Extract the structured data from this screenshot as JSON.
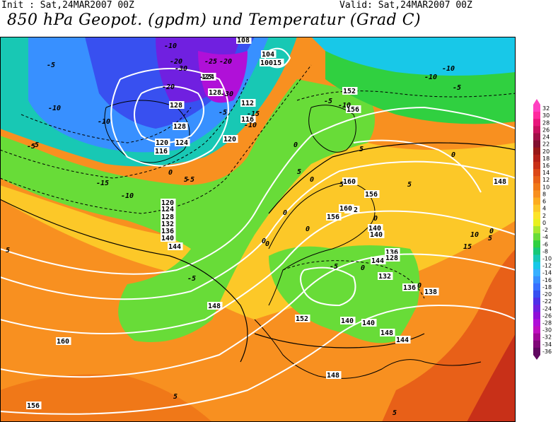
{
  "header": {
    "init": "Init : Sat,24MAR2007 00Z",
    "valid": "Valid: Sat,24MAR2007 00Z",
    "title": "850 hPa Geopot. (gpdm) und Temperatur (Grad C)"
  },
  "legend": {
    "values": [
      "32",
      "30",
      "28",
      "26",
      "24",
      "22",
      "20",
      "18",
      "16",
      "14",
      "12",
      "10",
      "8",
      "6",
      "4",
      "2",
      "0",
      "-2",
      "-4",
      "-6",
      "-8",
      "-10",
      "-12",
      "-14",
      "-16",
      "-18",
      "-20",
      "-22",
      "-24",
      "-26",
      "-28",
      "-30",
      "-32",
      "-34",
      "-36"
    ],
    "colors": [
      "#ff40c0",
      "#ff2a9e",
      "#e8167c",
      "#c81060",
      "#a01048",
      "#801030",
      "#981818",
      "#b42018",
      "#c83018",
      "#dc4818",
      "#e86018",
      "#f07818",
      "#f89020",
      "#fcac20",
      "#fcc828",
      "#fce428",
      "#e8f020",
      "#a8e830",
      "#68dc38",
      "#30d040",
      "#18c878",
      "#18c8b4",
      "#18c8e8",
      "#38b0ff",
      "#3890ff",
      "#3870ff",
      "#3850f0",
      "#5030e8",
      "#7020e0",
      "#9010d8",
      "#b010d8",
      "#c010c0",
      "#a00898",
      "#800878",
      "#600860"
    ]
  },
  "map": {
    "geopotential_labels": [
      "108",
      "104",
      "10015",
      "124",
      "128",
      "128",
      "112",
      "116",
      "120",
      "124",
      "128",
      "120",
      "116",
      "120",
      "124",
      "128",
      "132",
      "136",
      "140",
      "144",
      "148",
      "152",
      "156",
      "160",
      "156",
      "152",
      "148",
      "144",
      "140",
      "140",
      "136",
      "132",
      "128",
      "136",
      "138",
      "140",
      "144",
      "148",
      "152",
      "156",
      "160",
      "148",
      "140",
      "160",
      "156"
    ],
    "temperature_labels": [
      "-5",
      "-10",
      "-20",
      "-25",
      "-30",
      "-20",
      "-25",
      "-30",
      "-15",
      "-10",
      "-5",
      "-20",
      "-10",
      "-15",
      "-10",
      "-5",
      "0",
      "5",
      "-5",
      "-10",
      "-10",
      "-5",
      "5",
      "0",
      "-5",
      "0",
      "5",
      "0",
      "-5",
      "0",
      "-5",
      "0",
      "5",
      "0",
      "5",
      "0",
      "-10",
      "-10",
      "-5",
      "5",
      "0",
      "5",
      "10",
      "0",
      "5",
      "5",
      "0",
      "15",
      "0"
    ]
  }
}
